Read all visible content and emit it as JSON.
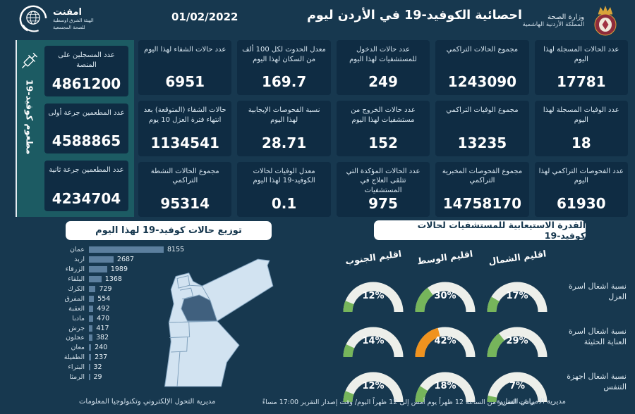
{
  "header": {
    "org_name": "امفنت",
    "org_sub1": "الهيئة الشرق اوسطية",
    "org_sub2": "للصحة المجتمعية",
    "date": "01/02/2022",
    "title": "احصائية الكوفيد-19 في الأردن ليوم",
    "ministry_line1": "وزارة الصحة",
    "ministry_line2": "المملكة الأردنية الهاشمية"
  },
  "vaccine_panel": {
    "vertical_label": "مطعوم كوفيد-19",
    "cards": [
      {
        "label": "عدد المسجلين على المنصة",
        "value": "4861200"
      },
      {
        "label": "عدد المطعمين جرعة أولى",
        "value": "4588865"
      },
      {
        "label": "عدد المطعمين جرعة ثانية",
        "value": "4234704"
      }
    ]
  },
  "stat_cards": [
    {
      "label": "عدد الحالات المسجلة لهذا اليوم",
      "value": "17781"
    },
    {
      "label": "مجموع الحالات التراكمي",
      "value": "1243090"
    },
    {
      "label": "عدد حالات الدخول للمستشفيات لهذا اليوم",
      "value": "249"
    },
    {
      "label": "معدل الحدوث لكل 100 ألف من السكان لهذا اليوم",
      "value": "169.7"
    },
    {
      "label": "عدد حالات الشفاء لهذا اليوم",
      "value": "6951"
    },
    {
      "label": "عدد الوفيات المسجلة لهذا اليوم",
      "value": "18"
    },
    {
      "label": "مجموع الوفيات التراكمي",
      "value": "13235"
    },
    {
      "label": "عدد حالات الخروج من مستشفيات لهذا اليوم",
      "value": "152"
    },
    {
      "label": "نسبة الفحوصات الإيجابية لهذا اليوم",
      "value": "28.71"
    },
    {
      "label": "حالات الشفاء (المتوقعة) بعد انتهاء فترة العزل 10 يوم",
      "value": "1134541"
    },
    {
      "label": "عدد الفحوصات التراكمي لهذا اليوم",
      "value": "61930"
    },
    {
      "label": "مجموع الفحوصات المخبرية التراكمي",
      "value": "14758170"
    },
    {
      "label": "عدد الحالات المؤكدة التي تتلقى العلاج في المستشفيات",
      "value": "975"
    },
    {
      "label": "معدل الوفيات لحالات الكوفيد-19 لهذا اليوم",
      "value": "0.1"
    },
    {
      "label": "مجموع الحالات النشطة التراكمي",
      "value": "95314"
    }
  ],
  "chart_data": [
    {
      "type": "bar",
      "orientation": "horizontal",
      "title": "توزيع حالات كوفيد-19 لهذا اليوم",
      "categories": [
        "عمان",
        "اربد",
        "الزرقاء",
        "البلقاء",
        "الكرك",
        "المفرق",
        "العقبة",
        "مادبا",
        "جرش",
        "عجلون",
        "معان",
        "الطفيلة",
        "البتراء",
        "الرمثا"
      ],
      "values": [
        8155,
        2687,
        1989,
        1368,
        729,
        554,
        492,
        470,
        417,
        382,
        240,
        237,
        32,
        29
      ],
      "bar_color": "#5C7F9E",
      "xlim": [
        0,
        8155
      ]
    },
    {
      "type": "gauge-grid",
      "title": "القدرة الاستيعابية للمستشفيات لحالات كوفيد-19",
      "columns": [
        "اقليم الشمال",
        "اقليم الوسط",
        "اقليم الجنوب"
      ],
      "rows": [
        {
          "label": "نسبة اشغال اسرة العزل",
          "values": [
            17,
            30,
            12
          ]
        },
        {
          "label": "نسبة اشغال اسرة العناية الحثيثة",
          "values": [
            29,
            42,
            14
          ]
        },
        {
          "label": "نسبة اشغال اجهزة التنفس",
          "values": [
            7,
            18,
            12
          ]
        }
      ],
      "unit": "%",
      "thresholds": {
        "green": "#76B55B",
        "orange": "#F0931F"
      },
      "track_color": "#EDEFEA"
    }
  ],
  "footer": {
    "right": "مديرية الأمراض السارية",
    "center": "بيانات التقرير من الساعة 12 ظهراً يوم أمس إلى 12 ظهراً اليوم/ وقت إصدار التقرير 17:00 مساءً",
    "left": "مديرية التحول الإلكتروني وتكنولوجيا المعلومات"
  },
  "colors": {
    "background": "#17384F",
    "card": "#0F2C43",
    "sidebar_accent": "#1C5B63",
    "map_light": "#D2E3F1",
    "map_dark": "#40607E"
  }
}
